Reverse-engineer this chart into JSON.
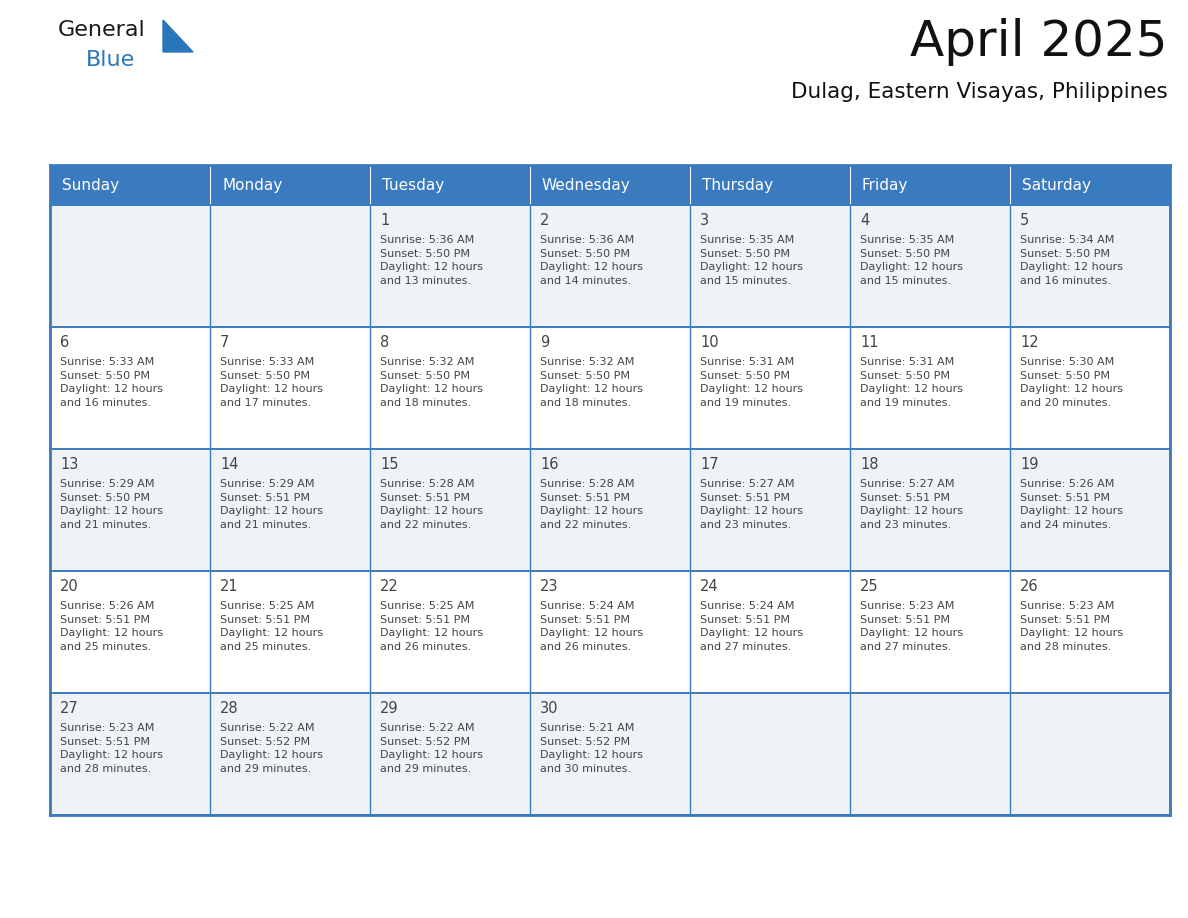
{
  "title": "April 2025",
  "subtitle": "Dulag, Eastern Visayas, Philippines",
  "header_color": "#3a7abf",
  "header_text_color": "#ffffff",
  "row_bg_colors": [
    "#eff3f8",
    "#ffffff",
    "#eff3f8",
    "#ffffff",
    "#eff3f8"
  ],
  "border_color": "#3a7abf",
  "text_color": "#444444",
  "days_of_week": [
    "Sunday",
    "Monday",
    "Tuesday",
    "Wednesday",
    "Thursday",
    "Friday",
    "Saturday"
  ],
  "weeks": [
    [
      {
        "day": null,
        "text": ""
      },
      {
        "day": null,
        "text": ""
      },
      {
        "day": 1,
        "text": "Sunrise: 5:36 AM\nSunset: 5:50 PM\nDaylight: 12 hours\nand 13 minutes."
      },
      {
        "day": 2,
        "text": "Sunrise: 5:36 AM\nSunset: 5:50 PM\nDaylight: 12 hours\nand 14 minutes."
      },
      {
        "day": 3,
        "text": "Sunrise: 5:35 AM\nSunset: 5:50 PM\nDaylight: 12 hours\nand 15 minutes."
      },
      {
        "day": 4,
        "text": "Sunrise: 5:35 AM\nSunset: 5:50 PM\nDaylight: 12 hours\nand 15 minutes."
      },
      {
        "day": 5,
        "text": "Sunrise: 5:34 AM\nSunset: 5:50 PM\nDaylight: 12 hours\nand 16 minutes."
      }
    ],
    [
      {
        "day": 6,
        "text": "Sunrise: 5:33 AM\nSunset: 5:50 PM\nDaylight: 12 hours\nand 16 minutes."
      },
      {
        "day": 7,
        "text": "Sunrise: 5:33 AM\nSunset: 5:50 PM\nDaylight: 12 hours\nand 17 minutes."
      },
      {
        "day": 8,
        "text": "Sunrise: 5:32 AM\nSunset: 5:50 PM\nDaylight: 12 hours\nand 18 minutes."
      },
      {
        "day": 9,
        "text": "Sunrise: 5:32 AM\nSunset: 5:50 PM\nDaylight: 12 hours\nand 18 minutes."
      },
      {
        "day": 10,
        "text": "Sunrise: 5:31 AM\nSunset: 5:50 PM\nDaylight: 12 hours\nand 19 minutes."
      },
      {
        "day": 11,
        "text": "Sunrise: 5:31 AM\nSunset: 5:50 PM\nDaylight: 12 hours\nand 19 minutes."
      },
      {
        "day": 12,
        "text": "Sunrise: 5:30 AM\nSunset: 5:50 PM\nDaylight: 12 hours\nand 20 minutes."
      }
    ],
    [
      {
        "day": 13,
        "text": "Sunrise: 5:29 AM\nSunset: 5:50 PM\nDaylight: 12 hours\nand 21 minutes."
      },
      {
        "day": 14,
        "text": "Sunrise: 5:29 AM\nSunset: 5:51 PM\nDaylight: 12 hours\nand 21 minutes."
      },
      {
        "day": 15,
        "text": "Sunrise: 5:28 AM\nSunset: 5:51 PM\nDaylight: 12 hours\nand 22 minutes."
      },
      {
        "day": 16,
        "text": "Sunrise: 5:28 AM\nSunset: 5:51 PM\nDaylight: 12 hours\nand 22 minutes."
      },
      {
        "day": 17,
        "text": "Sunrise: 5:27 AM\nSunset: 5:51 PM\nDaylight: 12 hours\nand 23 minutes."
      },
      {
        "day": 18,
        "text": "Sunrise: 5:27 AM\nSunset: 5:51 PM\nDaylight: 12 hours\nand 23 minutes."
      },
      {
        "day": 19,
        "text": "Sunrise: 5:26 AM\nSunset: 5:51 PM\nDaylight: 12 hours\nand 24 minutes."
      }
    ],
    [
      {
        "day": 20,
        "text": "Sunrise: 5:26 AM\nSunset: 5:51 PM\nDaylight: 12 hours\nand 25 minutes."
      },
      {
        "day": 21,
        "text": "Sunrise: 5:25 AM\nSunset: 5:51 PM\nDaylight: 12 hours\nand 25 minutes."
      },
      {
        "day": 22,
        "text": "Sunrise: 5:25 AM\nSunset: 5:51 PM\nDaylight: 12 hours\nand 26 minutes."
      },
      {
        "day": 23,
        "text": "Sunrise: 5:24 AM\nSunset: 5:51 PM\nDaylight: 12 hours\nand 26 minutes."
      },
      {
        "day": 24,
        "text": "Sunrise: 5:24 AM\nSunset: 5:51 PM\nDaylight: 12 hours\nand 27 minutes."
      },
      {
        "day": 25,
        "text": "Sunrise: 5:23 AM\nSunset: 5:51 PM\nDaylight: 12 hours\nand 27 minutes."
      },
      {
        "day": 26,
        "text": "Sunrise: 5:23 AM\nSunset: 5:51 PM\nDaylight: 12 hours\nand 28 minutes."
      }
    ],
    [
      {
        "day": 27,
        "text": "Sunrise: 5:23 AM\nSunset: 5:51 PM\nDaylight: 12 hours\nand 28 minutes."
      },
      {
        "day": 28,
        "text": "Sunrise: 5:22 AM\nSunset: 5:52 PM\nDaylight: 12 hours\nand 29 minutes."
      },
      {
        "day": 29,
        "text": "Sunrise: 5:22 AM\nSunset: 5:52 PM\nDaylight: 12 hours\nand 29 minutes."
      },
      {
        "day": 30,
        "text": "Sunrise: 5:21 AM\nSunset: 5:52 PM\nDaylight: 12 hours\nand 30 minutes."
      },
      {
        "day": null,
        "text": ""
      },
      {
        "day": null,
        "text": ""
      },
      {
        "day": null,
        "text": ""
      }
    ]
  ],
  "logo_text_general": "General",
  "logo_text_blue": "Blue",
  "logo_color_general": "#1a1a1a",
  "logo_color_blue": "#2976bc",
  "logo_triangle_color": "#2976bc"
}
